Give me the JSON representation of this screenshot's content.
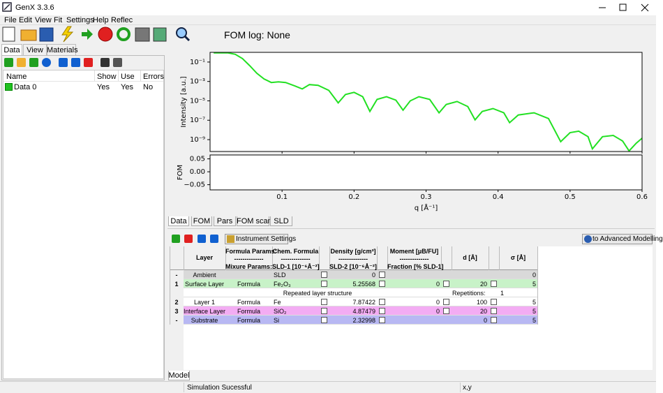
{
  "window": {
    "title": "GenX 3.3.6"
  },
  "menu": [
    "File",
    "Edit",
    "View",
    "Fit",
    "Settings",
    "Help",
    "Reflec"
  ],
  "toolbar": {
    "fom_log": "FOM log: None"
  },
  "data_panel": {
    "tabs": [
      "Data",
      "View",
      "Materials"
    ],
    "columns": [
      "Name",
      "Show",
      "Use",
      "Errors"
    ],
    "rows": [
      [
        "Data 0",
        "Yes",
        "Yes",
        "No"
      ]
    ]
  },
  "chart_data": [
    {
      "type": "line",
      "ylabel": "Intensity [a.u.]",
      "log_y": true,
      "xlim": [
        0,
        0.6
      ],
      "ylim": [
        6e-11,
        1
      ],
      "yticks": [
        {
          "value": 1e-09,
          "label": "10⁻⁹"
        },
        {
          "value": 1e-07,
          "label": "10⁻⁷"
        },
        {
          "value": 1e-05,
          "label": "10⁻⁵"
        },
        {
          "value": 0.001,
          "label": "10⁻³"
        },
        {
          "value": 0.1,
          "label": "10⁻¹"
        }
      ],
      "x": [
        0.005,
        0.025,
        0.035,
        0.045,
        0.055,
        0.065,
        0.075,
        0.085,
        0.095,
        0.105,
        0.118,
        0.128,
        0.138,
        0.15,
        0.165,
        0.178,
        0.188,
        0.2,
        0.212,
        0.222,
        0.232,
        0.245,
        0.258,
        0.268,
        0.278,
        0.29,
        0.305,
        0.318,
        0.328,
        0.343,
        0.358,
        0.368,
        0.378,
        0.393,
        0.408,
        0.416,
        0.428,
        0.45,
        0.47,
        0.487,
        0.5,
        0.512,
        0.525,
        0.531,
        0.545,
        0.56,
        0.573,
        0.582,
        0.592,
        0.6
      ],
      "series": [
        {
          "color": "#22e022",
          "values": [
            0.88,
            0.88,
            0.63,
            0.23,
            0.043,
            0.0069,
            0.0018,
            0.00078,
            0.00092,
            0.00078,
            0.00034,
            0.00017,
            0.00047,
            0.0004,
            0.00012,
            6.1e-06,
            4.5e-05,
            7.5e-05,
            2.7e-05,
            8.1e-07,
            1.4e-05,
            2.7e-05,
            1.2e-05,
            1.1e-06,
            1e-05,
            2.7e-05,
            1.4e-05,
            5.8e-07,
            4.3e-06,
            8.5e-06,
            2.6e-06,
            1.1e-07,
            8.1e-07,
            1.6e-06,
            5.8e-07,
            5.6e-08,
            3.5e-07,
            5.8e-07,
            1.5e-07,
            6.1e-10,
            5.3e-09,
            7.5e-09,
            2e-09,
            1.1e-10,
            2e-09,
            2.7e-09,
            7.2e-10,
            6.9e-11,
            4.3e-10,
            1.4e-09
          ]
        }
      ]
    },
    {
      "type": "line",
      "ylabel": "FOM",
      "xlabel": "q [Å⁻¹]",
      "xlim": [
        0,
        0.6
      ],
      "ylim": [
        -0.07,
        0.065
      ],
      "xticks": [
        0.1,
        0.2,
        0.3,
        0.4,
        0.5,
        0.6
      ],
      "yticks": [
        {
          "value": -0.05,
          "label": "−0.05"
        },
        {
          "value": 0,
          "label": "0.00"
        },
        0.05
      ]
    }
  ],
  "plot_tabs": [
    "Data",
    "FOM",
    "Pars",
    "FOM scans",
    "SLD"
  ],
  "model": {
    "instrument_button": "Instrument Settings",
    "advanced_button": "to Advanced Modelling",
    "header": [
      [
        "Layer"
      ],
      [
        "Formula Params:",
        "--------------",
        "Mixure Params:"
      ],
      [
        "Chem. Formula",
        "--------------",
        "SLD-1 [10⁻⁶Å⁻²]"
      ],
      [
        "Density [g/cm³]",
        "--------------",
        "SLD-2 [10⁻⁶Å⁻²]"
      ],
      [
        "Moment [μB/FU]",
        "--------------",
        "Fraction [% SLD-1]"
      ],
      [
        "d [Å]"
      ],
      [
        "σ [Å]"
      ]
    ],
    "rows": [
      [
        "-",
        "Ambient",
        null,
        "SLD",
        "0",
        null,
        null,
        "0"
      ],
      [
        "1",
        "Surface Layer",
        "Formula",
        "Fe₂O₃",
        "5.25568",
        "0",
        "20",
        "5"
      ],
      [
        "2",
        "Layer 1",
        "Formula",
        "Fe",
        "7.87422",
        "0",
        "100",
        "5"
      ],
      [
        "3",
        "Interface Layer",
        "Formula",
        "SiO₂",
        "4.87479",
        "0",
        "20",
        "5"
      ],
      [
        "-",
        "Substrate",
        "Formula",
        "Si",
        "2.32998",
        null,
        "0",
        "5"
      ]
    ],
    "repeat": {
      "label": "Repeated layer structure",
      "repetitions_label": "Repetitions:",
      "repetitions": "1"
    }
  },
  "bottom_tab": "Model",
  "status": [
    "Simulation Sucessful",
    "x,y"
  ]
}
